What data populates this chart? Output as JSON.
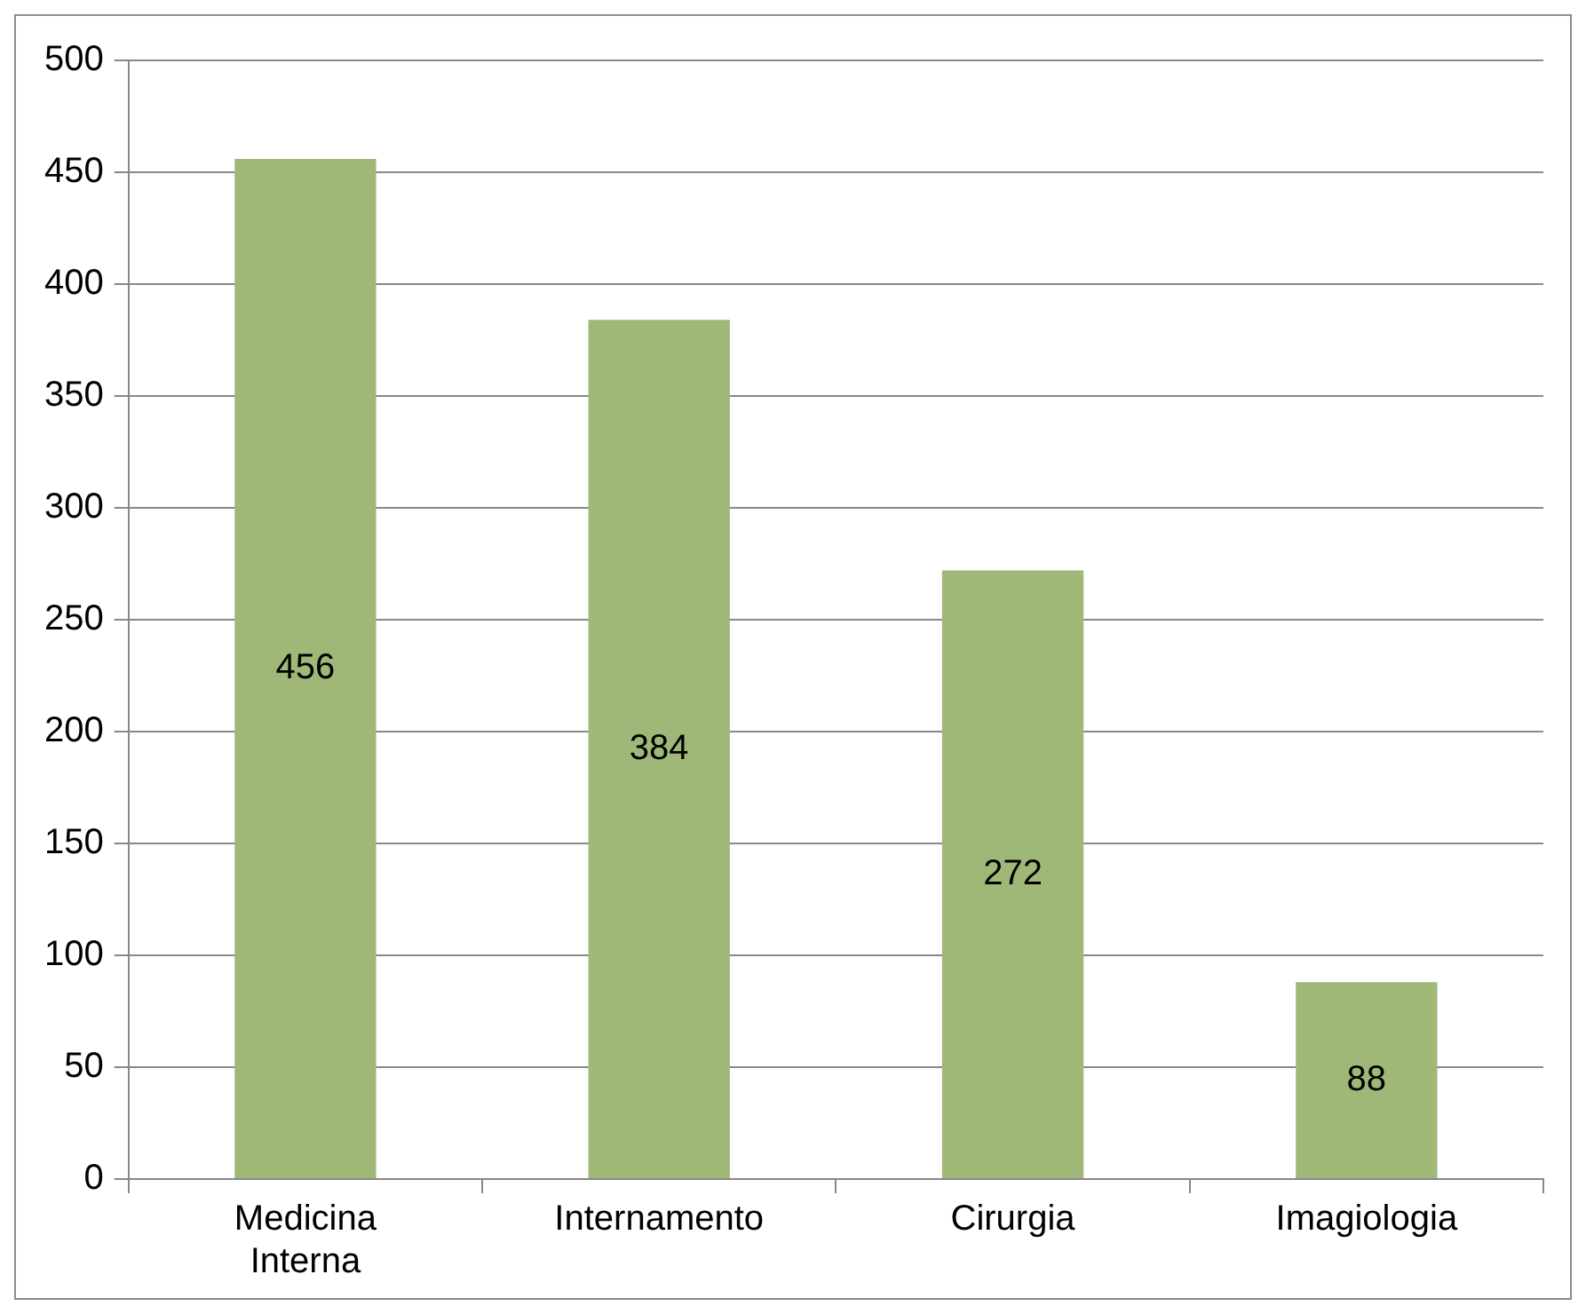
{
  "chart_data": {
    "type": "bar",
    "categories": [
      "Medicina Interna",
      "Internamento",
      "Cirurgia",
      "Imagiologia"
    ],
    "values": [
      456,
      384,
      272,
      88
    ],
    "color": "#9fb878",
    "ylim": [
      0,
      500
    ],
    "yticks": [
      0,
      50,
      100,
      150,
      200,
      250,
      300,
      350,
      400,
      450,
      500
    ],
    "grid": "y",
    "data_labels": true,
    "legend": false
  }
}
